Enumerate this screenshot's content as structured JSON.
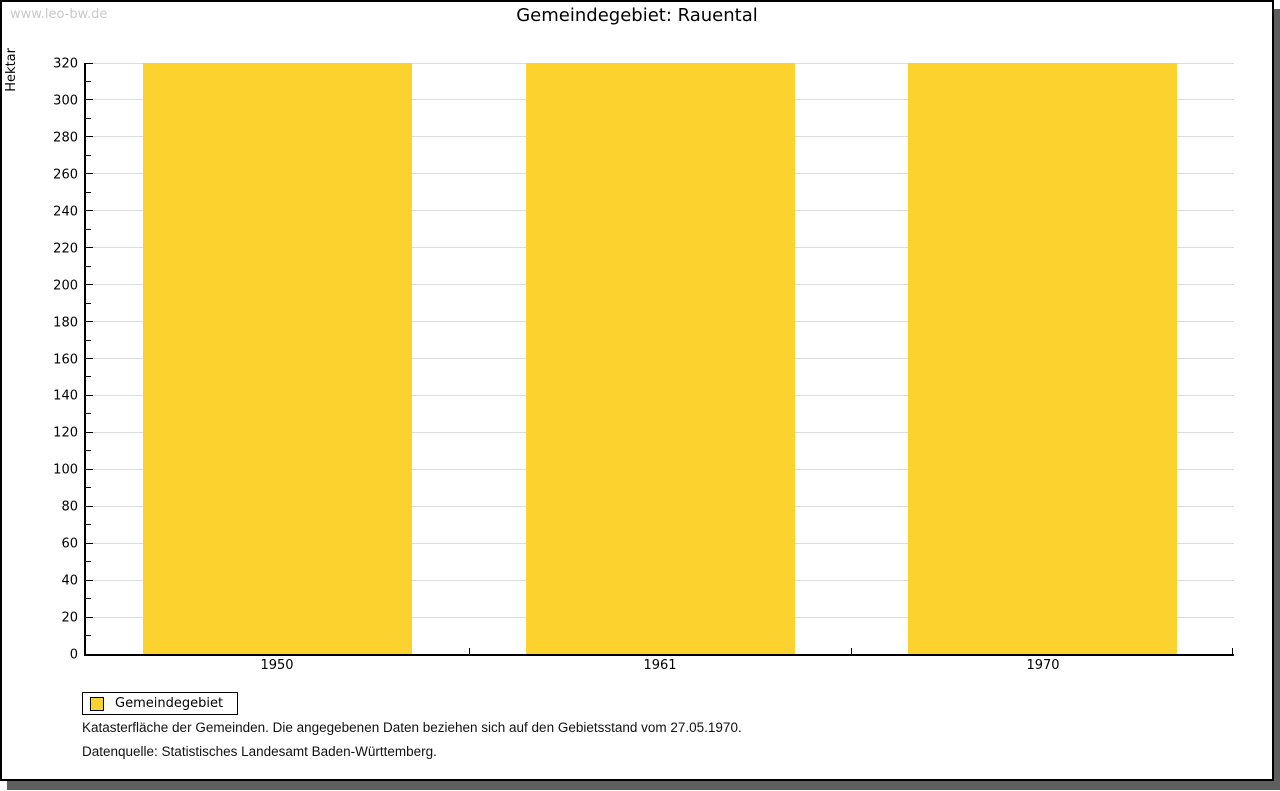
{
  "watermark": "www.leo-bw.de",
  "title": "Gemeindegebiet: Rauental",
  "chart_data": {
    "type": "bar",
    "title": "Gemeindegebiet: Rauental",
    "categories": [
      "1950",
      "1961",
      "1970"
    ],
    "values": [
      320,
      320,
      320
    ],
    "series_name": "Gemeindegebiet",
    "xlabel": "",
    "ylabel": "Hektar",
    "ylim": [
      0,
      320
    ],
    "ytick_step": 20,
    "yminor_step": 10,
    "grid": true,
    "legend_position": "bottom-left",
    "bar_color": "#FCD32E",
    "grid_color": "#DCDCDC",
    "axis_color": "#000000"
  },
  "footnotes": [
    "Katasterfläche der Gemeinden. Die angegebenen Daten beziehen sich auf den Gebietsstand vom 27.05.1970.",
    "Datenquelle: Statistisches Landesamt Baden-Württemberg."
  ],
  "colors": {
    "watermark": "#C9C9C9",
    "frame_shadow": "#5E5E5E"
  }
}
